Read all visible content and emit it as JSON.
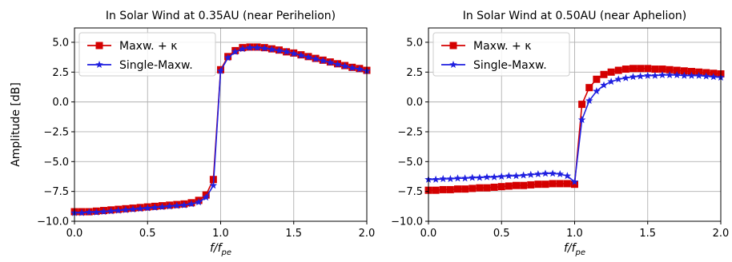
{
  "chart_data": [
    {
      "type": "line",
      "title": "In Solar Wind at 0.35AU (near Perihelion)",
      "xlabel_main": "f/f",
      "xlabel_sub": "pe",
      "ylabel": "Amplitude [dB]",
      "xlim": [
        0.0,
        2.0
      ],
      "ylim": [
        -10.0,
        6.2
      ],
      "xticks": [
        0.0,
        0.5,
        1.0,
        1.5,
        2.0
      ],
      "xtick_labels": [
        "0.0",
        "0.5",
        "1.0",
        "1.5",
        "2.0"
      ],
      "yticks": [
        -10.0,
        -7.5,
        -5.0,
        -2.5,
        0.0,
        2.5,
        5.0
      ],
      "ytick_labels": [
        "−10.0",
        "−7.5",
        "−5.0",
        "−2.5",
        "0.0",
        "2.5",
        "5.0"
      ],
      "grid": true,
      "legend_position": "upper-left",
      "x": [
        0.0,
        0.05,
        0.1,
        0.15,
        0.2,
        0.25,
        0.3,
        0.35,
        0.4,
        0.45,
        0.5,
        0.55,
        0.6,
        0.65,
        0.7,
        0.75,
        0.8,
        0.85,
        0.9,
        0.95,
        1.0,
        1.05,
        1.1,
        1.15,
        1.2,
        1.25,
        1.3,
        1.35,
        1.4,
        1.45,
        1.5,
        1.55,
        1.6,
        1.65,
        1.7,
        1.75,
        1.8,
        1.85,
        1.9,
        1.95,
        2.0
      ],
      "series": [
        {
          "name": "Maxw. + κ",
          "color": "#d40000",
          "marker": "square",
          "values": [
            -9.2,
            -9.2,
            -9.2,
            -9.15,
            -9.1,
            -9.05,
            -9.0,
            -8.95,
            -8.9,
            -8.85,
            -8.8,
            -8.75,
            -8.7,
            -8.65,
            -8.6,
            -8.55,
            -8.45,
            -8.25,
            -7.8,
            -6.5,
            2.7,
            3.8,
            4.3,
            4.55,
            4.6,
            4.6,
            4.55,
            4.45,
            4.35,
            4.2,
            4.1,
            3.95,
            3.8,
            3.65,
            3.5,
            3.35,
            3.2,
            3.05,
            2.9,
            2.8,
            2.65
          ]
        },
        {
          "name": "Single-Maxw.",
          "color": "#1f1fe0",
          "marker": "star",
          "values": [
            -9.3,
            -9.3,
            -9.25,
            -9.25,
            -9.2,
            -9.15,
            -9.1,
            -9.05,
            -9.0,
            -8.95,
            -8.9,
            -8.85,
            -8.8,
            -8.75,
            -8.7,
            -8.65,
            -8.55,
            -8.4,
            -8.0,
            -7.0,
            2.6,
            3.7,
            4.2,
            4.45,
            4.55,
            4.55,
            4.5,
            4.4,
            4.3,
            4.2,
            4.05,
            3.9,
            3.75,
            3.6,
            3.45,
            3.3,
            3.15,
            3.0,
            2.85,
            2.75,
            2.6
          ]
        }
      ]
    },
    {
      "type": "line",
      "title": "In Solar Wind at 0.50AU (near Aphelion)",
      "xlabel_main": "f/f",
      "xlabel_sub": "pe",
      "ylabel": "",
      "xlim": [
        0.0,
        2.0
      ],
      "ylim": [
        -10.0,
        6.2
      ],
      "xticks": [
        0.0,
        0.5,
        1.0,
        1.5,
        2.0
      ],
      "xtick_labels": [
        "0.0",
        "0.5",
        "1.0",
        "1.5",
        "2.0"
      ],
      "yticks": [
        -10.0,
        -7.5,
        -5.0,
        -2.5,
        0.0,
        2.5,
        5.0
      ],
      "ytick_labels": [
        "−10.0",
        "−7.5",
        "−5.0",
        "−2.5",
        "0.0",
        "2.5",
        "5.0"
      ],
      "grid": true,
      "legend_position": "upper-left",
      "x": [
        0.0,
        0.05,
        0.1,
        0.15,
        0.2,
        0.25,
        0.3,
        0.35,
        0.4,
        0.45,
        0.5,
        0.55,
        0.6,
        0.65,
        0.7,
        0.75,
        0.8,
        0.85,
        0.9,
        0.95,
        1.0,
        1.05,
        1.1,
        1.15,
        1.2,
        1.25,
        1.3,
        1.35,
        1.4,
        1.45,
        1.5,
        1.55,
        1.6,
        1.65,
        1.7,
        1.75,
        1.8,
        1.85,
        1.9,
        1.95,
        2.0
      ],
      "series": [
        {
          "name": "Maxw. + κ",
          "color": "#d40000",
          "marker": "square",
          "values": [
            -7.4,
            -7.4,
            -7.35,
            -7.35,
            -7.3,
            -7.3,
            -7.25,
            -7.2,
            -7.2,
            -7.15,
            -7.1,
            -7.05,
            -7.0,
            -7.0,
            -6.95,
            -6.9,
            -6.9,
            -6.85,
            -6.85,
            -6.85,
            -6.9,
            -0.2,
            1.2,
            1.9,
            2.3,
            2.5,
            2.65,
            2.75,
            2.8,
            2.8,
            2.8,
            2.75,
            2.75,
            2.7,
            2.65,
            2.6,
            2.55,
            2.5,
            2.45,
            2.4,
            2.35
          ]
        },
        {
          "name": "Single-Maxw.",
          "color": "#1f1fe0",
          "marker": "star",
          "values": [
            -6.5,
            -6.5,
            -6.45,
            -6.45,
            -6.4,
            -6.4,
            -6.35,
            -6.35,
            -6.3,
            -6.3,
            -6.25,
            -6.2,
            -6.2,
            -6.15,
            -6.1,
            -6.05,
            -6.0,
            -6.0,
            -6.05,
            -6.2,
            -6.7,
            -1.5,
            0.1,
            0.9,
            1.4,
            1.7,
            1.9,
            2.0,
            2.1,
            2.15,
            2.2,
            2.2,
            2.25,
            2.25,
            2.25,
            2.2,
            2.2,
            2.2,
            2.15,
            2.1,
            2.05
          ]
        }
      ]
    }
  ]
}
